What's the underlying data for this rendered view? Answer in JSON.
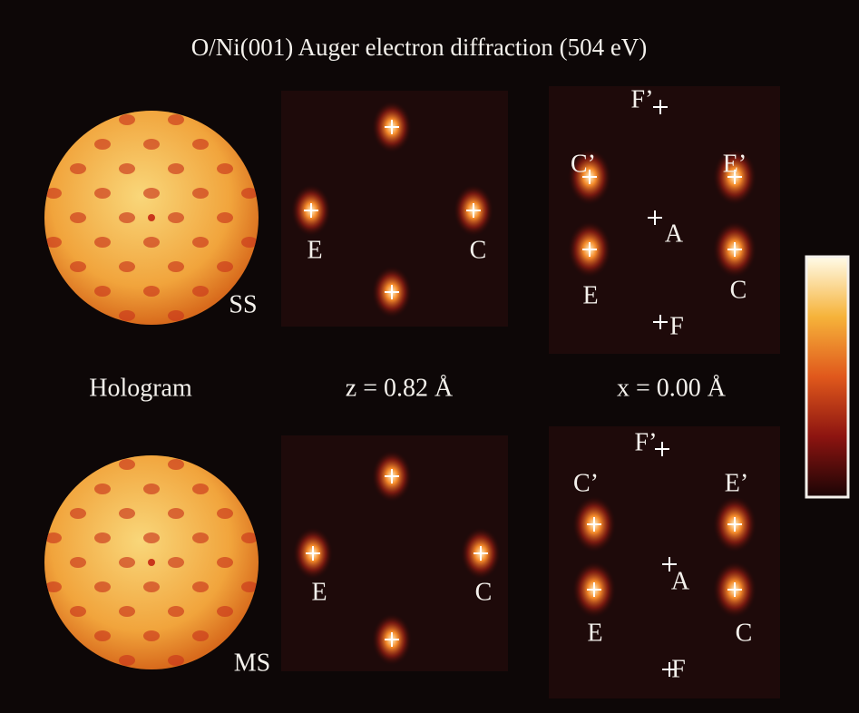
{
  "title": "O/Ni(001) Auger electron diffraction (504 eV)",
  "column_labels": [
    "Hologram",
    "z = 0.82 Å",
    "x = 0.00 Å"
  ],
  "rows": [
    {
      "name": "SS",
      "slice_labels": [
        "E",
        "C"
      ],
      "cut_labels": [
        "F’",
        "C’",
        "E’",
        "A",
        "E",
        "C",
        "F"
      ]
    },
    {
      "name": "MS",
      "slice_labels": [
        "E",
        "C"
      ],
      "cut_labels": [
        "F’",
        "C’",
        "E’",
        "A",
        "E",
        "C",
        "F"
      ]
    }
  ]
}
